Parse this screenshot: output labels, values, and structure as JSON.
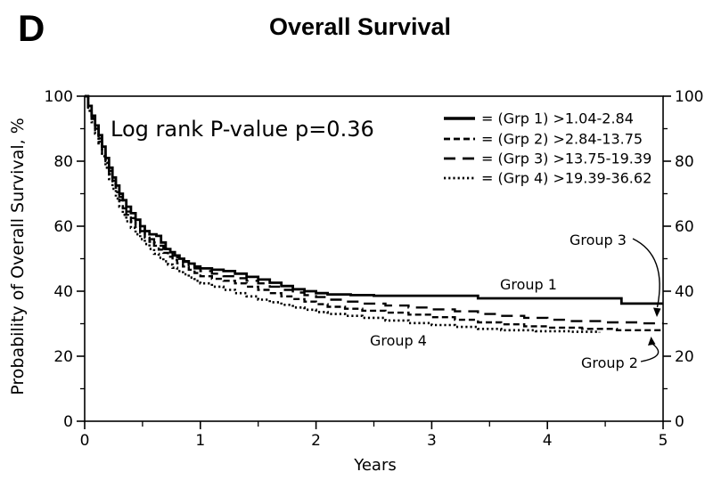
{
  "panel_label": "D",
  "title": "Overall Survival",
  "pvalue_text": "Log rank P-value p=0.36",
  "colors": {
    "foreground": "#000000",
    "background": "#ffffff"
  },
  "axes": {
    "y_label": "Probability of Overall Survival, %",
    "x_label": "Years",
    "x_major_ticks": [
      0,
      1,
      2,
      3,
      4,
      5
    ],
    "x_minor_ticks": [
      0.5,
      1.5,
      2.5,
      3.5,
      4.5
    ],
    "y_major_ticks": [
      0,
      20,
      40,
      60,
      80,
      100
    ],
    "y_minor_ticks": [
      10,
      30,
      50,
      70,
      90
    ],
    "x_range": [
      0,
      5
    ],
    "y_range": [
      0,
      100
    ],
    "right_axis_labeled": true
  },
  "legend": [
    {
      "style": "solid",
      "label": "= (Grp 1) >1.04-2.84"
    },
    {
      "style": "dash-short",
      "label": "= (Grp 2) >2.84-13.75"
    },
    {
      "style": "dash-long",
      "label": "= (Grp 3) >13.75-19.39"
    },
    {
      "style": "dotted",
      "label": "= (Grp 4) >19.39-36.62"
    }
  ],
  "annotations": {
    "group1": {
      "label": "Group 1"
    },
    "group2": {
      "label": "Group 2"
    },
    "group3": {
      "label": "Group 3"
    },
    "group4": {
      "label": "Group 4"
    }
  },
  "chart_data": {
    "type": "line",
    "subtype": "kaplan-meier-step",
    "title": "Overall Survival",
    "xlabel": "Years",
    "ylabel": "Probability of Overall Survival, %",
    "xlim": [
      0,
      5
    ],
    "ylim": [
      0,
      100
    ],
    "grid": false,
    "legend_position": "upper-right-inside",
    "series": [
      {
        "name": "Group 1",
        "range": ">1.04-2.84",
        "style": "solid",
        "points": [
          [
            0,
            100
          ],
          [
            0.03,
            97
          ],
          [
            0.06,
            94
          ],
          [
            0.09,
            91
          ],
          [
            0.12,
            88
          ],
          [
            0.15,
            84.5
          ],
          [
            0.18,
            81
          ],
          [
            0.21,
            78
          ],
          [
            0.24,
            75
          ],
          [
            0.27,
            72.5
          ],
          [
            0.3,
            70
          ],
          [
            0.33,
            68
          ],
          [
            0.36,
            66
          ],
          [
            0.4,
            64
          ],
          [
            0.44,
            62
          ],
          [
            0.48,
            60
          ],
          [
            0.52,
            58.5
          ],
          [
            0.56,
            57.5
          ],
          [
            0.62,
            57
          ],
          [
            0.66,
            55
          ],
          [
            0.7,
            53
          ],
          [
            0.74,
            52
          ],
          [
            0.78,
            51
          ],
          [
            0.82,
            50
          ],
          [
            0.86,
            49.2
          ],
          [
            0.9,
            48.5
          ],
          [
            0.95,
            47.6
          ],
          [
            1.0,
            47
          ],
          [
            1.1,
            46.6
          ],
          [
            1.2,
            46.2
          ],
          [
            1.3,
            45.4
          ],
          [
            1.4,
            44.4
          ],
          [
            1.5,
            43.6
          ],
          [
            1.6,
            42.6
          ],
          [
            1.7,
            41.6
          ],
          [
            1.8,
            40.6
          ],
          [
            1.9,
            40
          ],
          [
            2.0,
            39.4
          ],
          [
            2.1,
            39
          ],
          [
            2.3,
            38.8
          ],
          [
            2.5,
            38.6
          ],
          [
            3.4,
            37.8
          ],
          [
            4.64,
            36.2
          ],
          [
            5,
            36.2
          ]
        ]
      },
      {
        "name": "Group 2",
        "range": ">2.84-13.75",
        "style": "dash-short",
        "points": [
          [
            0,
            100
          ],
          [
            0.03,
            96
          ],
          [
            0.06,
            93
          ],
          [
            0.09,
            89.5
          ],
          [
            0.12,
            86
          ],
          [
            0.15,
            82.5
          ],
          [
            0.18,
            79.5
          ],
          [
            0.21,
            76
          ],
          [
            0.24,
            73
          ],
          [
            0.27,
            70.5
          ],
          [
            0.3,
            68
          ],
          [
            0.33,
            65.5
          ],
          [
            0.36,
            63.5
          ],
          [
            0.4,
            61.5
          ],
          [
            0.44,
            59.5
          ],
          [
            0.48,
            58
          ],
          [
            0.52,
            56.5
          ],
          [
            0.56,
            55.2
          ],
          [
            0.6,
            54
          ],
          [
            0.64,
            52.8
          ],
          [
            0.68,
            51.8
          ],
          [
            0.72,
            50.6
          ],
          [
            0.76,
            49.6
          ],
          [
            0.8,
            48.6
          ],
          [
            0.85,
            47.6
          ],
          [
            0.9,
            46.6
          ],
          [
            0.95,
            45.6
          ],
          [
            1.0,
            44.6
          ],
          [
            1.1,
            43.8
          ],
          [
            1.2,
            43.2
          ],
          [
            1.3,
            42.4
          ],
          [
            1.4,
            41.4
          ],
          [
            1.5,
            40.4
          ],
          [
            1.6,
            39.4
          ],
          [
            1.7,
            38.4
          ],
          [
            1.8,
            37.6
          ],
          [
            1.9,
            36.8
          ],
          [
            2.0,
            36
          ],
          [
            2.1,
            35.2
          ],
          [
            2.25,
            34.6
          ],
          [
            2.4,
            34
          ],
          [
            2.6,
            33.4
          ],
          [
            2.8,
            32.8
          ],
          [
            3.0,
            32
          ],
          [
            3.2,
            31.2
          ],
          [
            3.4,
            30.4
          ],
          [
            3.6,
            29.8
          ],
          [
            3.8,
            29.2
          ],
          [
            4.0,
            28.8
          ],
          [
            4.3,
            28.4
          ],
          [
            4.6,
            28
          ],
          [
            5,
            27.8
          ]
        ]
      },
      {
        "name": "Group 3",
        "range": ">13.75-19.39",
        "style": "dash-long",
        "points": [
          [
            0,
            100
          ],
          [
            0.03,
            96.5
          ],
          [
            0.06,
            93.5
          ],
          [
            0.09,
            90
          ],
          [
            0.12,
            87
          ],
          [
            0.15,
            83.5
          ],
          [
            0.18,
            80
          ],
          [
            0.21,
            77
          ],
          [
            0.24,
            74
          ],
          [
            0.27,
            71.5
          ],
          [
            0.3,
            69
          ],
          [
            0.33,
            66.5
          ],
          [
            0.36,
            64.5
          ],
          [
            0.4,
            62.5
          ],
          [
            0.44,
            60.5
          ],
          [
            0.48,
            58.5
          ],
          [
            0.52,
            57
          ],
          [
            0.56,
            56
          ],
          [
            0.6,
            55
          ],
          [
            0.64,
            54
          ],
          [
            0.68,
            53
          ],
          [
            0.72,
            52
          ],
          [
            0.76,
            51
          ],
          [
            0.8,
            50
          ],
          [
            0.85,
            49
          ],
          [
            0.9,
            48
          ],
          [
            0.95,
            47
          ],
          [
            1.0,
            46.2
          ],
          [
            1.1,
            45.4
          ],
          [
            1.2,
            44.6
          ],
          [
            1.3,
            44
          ],
          [
            1.4,
            43.2
          ],
          [
            1.5,
            42.4
          ],
          [
            1.6,
            41.4
          ],
          [
            1.7,
            40.4
          ],
          [
            1.8,
            39.6
          ],
          [
            1.9,
            38.8
          ],
          [
            2.0,
            38.2
          ],
          [
            2.1,
            37.4
          ],
          [
            2.25,
            36.8
          ],
          [
            2.4,
            36.2
          ],
          [
            2.6,
            35.6
          ],
          [
            2.8,
            35
          ],
          [
            3.0,
            34.4
          ],
          [
            3.2,
            33.8
          ],
          [
            3.4,
            33
          ],
          [
            3.6,
            32.4
          ],
          [
            3.8,
            31.8
          ],
          [
            4.0,
            31.2
          ],
          [
            4.2,
            30.8
          ],
          [
            4.5,
            30.4
          ],
          [
            4.8,
            30.1
          ],
          [
            5,
            30.1
          ]
        ]
      },
      {
        "name": "Group 4",
        "range": ">19.39-36.62",
        "style": "dotted",
        "points": [
          [
            0,
            100
          ],
          [
            0.03,
            95.5
          ],
          [
            0.06,
            92
          ],
          [
            0.09,
            88.5
          ],
          [
            0.12,
            85
          ],
          [
            0.15,
            81.5
          ],
          [
            0.18,
            78
          ],
          [
            0.21,
            74.5
          ],
          [
            0.24,
            71.5
          ],
          [
            0.27,
            68.5
          ],
          [
            0.3,
            66
          ],
          [
            0.33,
            63.5
          ],
          [
            0.36,
            61.5
          ],
          [
            0.4,
            59.5
          ],
          [
            0.44,
            57.5
          ],
          [
            0.48,
            56
          ],
          [
            0.52,
            54.5
          ],
          [
            0.56,
            53
          ],
          [
            0.6,
            51.5
          ],
          [
            0.64,
            50.3
          ],
          [
            0.68,
            49.2
          ],
          [
            0.72,
            48.2
          ],
          [
            0.76,
            47.2
          ],
          [
            0.8,
            46.2
          ],
          [
            0.85,
            45.2
          ],
          [
            0.9,
            44.2
          ],
          [
            0.95,
            43.2
          ],
          [
            1.0,
            42.4
          ],
          [
            1.1,
            41.4
          ],
          [
            1.2,
            40.4
          ],
          [
            1.3,
            39.4
          ],
          [
            1.4,
            38.4
          ],
          [
            1.5,
            37.4
          ],
          [
            1.6,
            36.6
          ],
          [
            1.7,
            35.8
          ],
          [
            1.8,
            35
          ],
          [
            1.9,
            34.3
          ],
          [
            2.0,
            33.6
          ],
          [
            2.1,
            33
          ],
          [
            2.25,
            32.4
          ],
          [
            2.4,
            31.8
          ],
          [
            2.6,
            31
          ],
          [
            2.8,
            30.2
          ],
          [
            3.0,
            29.6
          ],
          [
            3.2,
            29
          ],
          [
            3.4,
            28.4
          ],
          [
            3.6,
            28
          ],
          [
            3.9,
            27.7
          ],
          [
            4.2,
            27.5
          ],
          [
            4.45,
            27.3
          ]
        ]
      }
    ]
  }
}
